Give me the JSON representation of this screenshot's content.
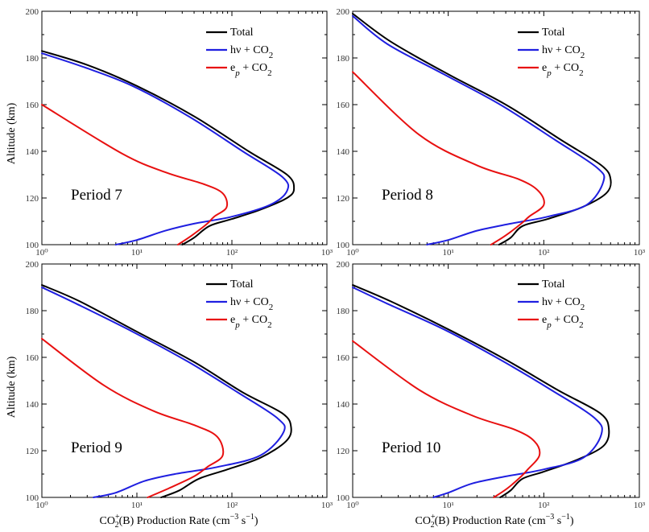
{
  "figure": {
    "ylabel": "Altitude (km)",
    "xlabel": "CO2+(B) Production Rate (cm−3 s−1)",
    "xlabel_parts": {
      "species": "CO",
      "sub": "2",
      "sup": "+",
      "tail": "(B)  Production Rate (cm",
      "unit_exp1": "−3",
      "unit_mid": " s",
      "unit_exp2": "−1",
      "close": ")"
    },
    "colors": {
      "total": "#000000",
      "photo": "#1f1fe0",
      "electron": "#e81010"
    }
  },
  "chart_data": [
    {
      "type": "line",
      "panel": "Period 7",
      "label": "Period 7",
      "xscale": "log",
      "xlim": [
        1,
        1000
      ],
      "ylim": [
        100,
        200
      ],
      "xticks": [
        1,
        10,
        100,
        1000
      ],
      "yticks": [
        100,
        120,
        140,
        160,
        180,
        200
      ],
      "legend": [
        "Total",
        "hν + CO2",
        "ep + CO2"
      ],
      "legend_placement": "top-right",
      "series": [
        {
          "name": "Total",
          "x": [
            30,
            40,
            58,
            100,
            200,
            380,
            450,
            380,
            150,
            40,
            10,
            3,
            1
          ],
          "y": [
            100,
            103,
            108,
            111,
            115,
            120,
            124,
            130,
            140,
            155,
            168,
            177,
            183
          ]
        },
        {
          "name": "hν + CO2",
          "x": [
            6,
            10,
            20,
            40,
            100,
            250,
            380,
            340,
            130,
            35,
            9,
            2.8,
            1
          ],
          "y": [
            100,
            102,
            106,
            109,
            112,
            117,
            123,
            129,
            140,
            155,
            168,
            176,
            182
          ]
        },
        {
          "name": "ep + CO2",
          "x": [
            27,
            38,
            55,
            65,
            88,
            80,
            50,
            20,
            7,
            1
          ],
          "y": [
            100,
            104,
            109,
            112,
            116,
            122,
            126,
            131,
            139,
            160
          ]
        }
      ]
    },
    {
      "type": "line",
      "panel": "Period 8",
      "label": "Period 8",
      "xscale": "log",
      "xlim": [
        1,
        1000
      ],
      "ylim": [
        100,
        200
      ],
      "xticks": [
        1,
        10,
        100,
        1000
      ],
      "yticks": [
        100,
        120,
        140,
        160,
        180,
        200
      ],
      "legend": [
        "Total",
        "hν + CO2",
        "ep + CO2"
      ],
      "legend_placement": "top-right",
      "series": [
        {
          "name": "Total",
          "x": [
            34,
            45,
            60,
            110,
            250,
            450,
            500,
            400,
            150,
            40,
            10,
            2.5,
            1
          ],
          "y": [
            100,
            103,
            108,
            111,
            116,
            122,
            128,
            134,
            145,
            160,
            173,
            187,
            199
          ]
        },
        {
          "name": "hν + CO2",
          "x": [
            6,
            10,
            20,
            45,
            110,
            280,
            420,
            360,
            130,
            35,
            9,
            2.3,
            1
          ],
          "y": [
            100,
            102,
            106,
            109,
            112,
            117,
            127,
            133,
            145,
            160,
            173,
            186,
            198
          ]
        },
        {
          "name": "ep + CO2",
          "x": [
            28,
            40,
            58,
            70,
            100,
            88,
            55,
            20,
            5,
            1
          ],
          "y": [
            100,
            104,
            109,
            112,
            117,
            123,
            128,
            134,
            147,
            174
          ]
        }
      ]
    },
    {
      "type": "line",
      "panel": "Period 9",
      "label": "Period 9",
      "xscale": "log",
      "xlim": [
        1,
        1000
      ],
      "ylim": [
        100,
        200
      ],
      "xticks": [
        1,
        10,
        100,
        1000
      ],
      "yticks": [
        100,
        120,
        140,
        160,
        180,
        200
      ],
      "legend": [
        "Total",
        "hν + CO2",
        "ep + CO2"
      ],
      "legend_placement": "top-right",
      "series": [
        {
          "name": "Total",
          "x": [
            18,
            28,
            45,
            90,
            200,
            370,
            420,
            340,
            130,
            40,
            10,
            2.5,
            1
          ],
          "y": [
            100,
            103,
            108,
            112,
            117,
            124,
            130,
            136,
            145,
            158,
            171,
            184,
            191
          ]
        },
        {
          "name": "hν + CO2",
          "x": [
            3.5,
            6,
            12,
            25,
            70,
            200,
            350,
            300,
            115,
            35,
            9,
            2.3,
            1
          ],
          "y": [
            100,
            102,
            107,
            110,
            113,
            118,
            128,
            134,
            145,
            158,
            171,
            183,
            190
          ]
        },
        {
          "name": "ep + CO2",
          "x": [
            13,
            22,
            40,
            55,
            80,
            70,
            40,
            15,
            4.5,
            1
          ],
          "y": [
            100,
            104,
            109,
            113,
            118,
            126,
            131,
            137,
            148,
            168
          ]
        }
      ]
    },
    {
      "type": "line",
      "panel": "Period 10",
      "label": "Period 10",
      "xscale": "log",
      "xlim": [
        1,
        1000
      ],
      "ylim": [
        100,
        200
      ],
      "xticks": [
        1,
        10,
        100,
        1000
      ],
      "yticks": [
        100,
        120,
        140,
        160,
        180,
        200
      ],
      "legend": [
        "Total",
        "hν + CO2",
        "ep + CO2"
      ],
      "legend_placement": "top-right",
      "series": [
        {
          "name": "Total",
          "x": [
            35,
            45,
            60,
            100,
            220,
            420,
            480,
            390,
            140,
            40,
            10,
            2.5,
            1
          ],
          "y": [
            100,
            103,
            108,
            111,
            116,
            122,
            129,
            136,
            146,
            159,
            172,
            184,
            191
          ]
        },
        {
          "name": "hν + CO2",
          "x": [
            7,
            10,
            18,
            40,
            100,
            260,
            400,
            340,
            120,
            35,
            9,
            2.3,
            1
          ],
          "y": [
            100,
            102,
            106,
            109,
            112,
            117,
            127,
            134,
            146,
            159,
            172,
            183,
            190
          ]
        },
        {
          "name": "ep + CO2",
          "x": [
            30,
            42,
            58,
            68,
            90,
            80,
            50,
            18,
            5,
            1
          ],
          "y": [
            100,
            104,
            109,
            112,
            118,
            124,
            129,
            135,
            146,
            167
          ]
        }
      ]
    }
  ]
}
